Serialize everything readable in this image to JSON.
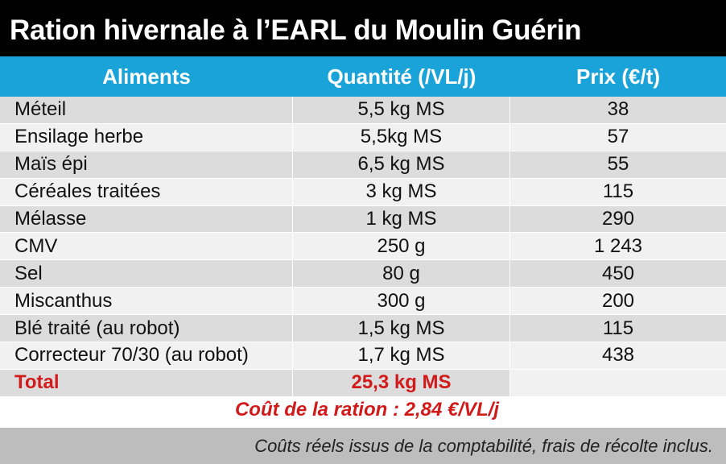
{
  "title": "Ration hivernale à l’EARL du Moulin Guérin",
  "table": {
    "headers": {
      "aliments": "Aliments",
      "quantite": "Quantité (/VL/j)",
      "prix": "Prix (€/t)"
    },
    "rows": [
      {
        "aliment": "Méteil",
        "quantite": "5,5 kg MS",
        "prix": "38"
      },
      {
        "aliment": "Ensilage herbe",
        "quantite": "5,5kg MS",
        "prix": "57"
      },
      {
        "aliment": "Maïs épi",
        "quantite": "6,5 kg MS",
        "prix": "55"
      },
      {
        "aliment": "Céréales traitées",
        "quantite": "3 kg MS",
        "prix": "115"
      },
      {
        "aliment": "Mélasse",
        "quantite": "1 kg MS",
        "prix": "290"
      },
      {
        "aliment": "CMV",
        "quantite": "250 g",
        "prix": "1 243"
      },
      {
        "aliment": "Sel",
        "quantite": "80 g",
        "prix": "450"
      },
      {
        "aliment": "Miscanthus",
        "quantite": "300 g",
        "prix": "200"
      },
      {
        "aliment": "Blé traité (au robot)",
        "quantite": "1,5 kg MS",
        "prix": "115"
      },
      {
        "aliment": "Correcteur 70/30 (au robot)",
        "quantite": "1,7 kg MS",
        "prix": "438"
      }
    ],
    "total": {
      "label": "Total",
      "quantite": "25,3 kg MS",
      "prix": ""
    }
  },
  "cost_line": "Coût de la ration : 2,84 €/VL/j",
  "footnote": "Coûts réels issus de la comptabilité, frais de récolte inclus.",
  "colors": {
    "title_bg": "#000000",
    "header_bg": "#1aa3d9",
    "accent_red": "#d11a1a",
    "row_dark": "#dcdcdc",
    "row_light": "#f1f1f1",
    "footnote_bg": "#bdbdbd"
  }
}
